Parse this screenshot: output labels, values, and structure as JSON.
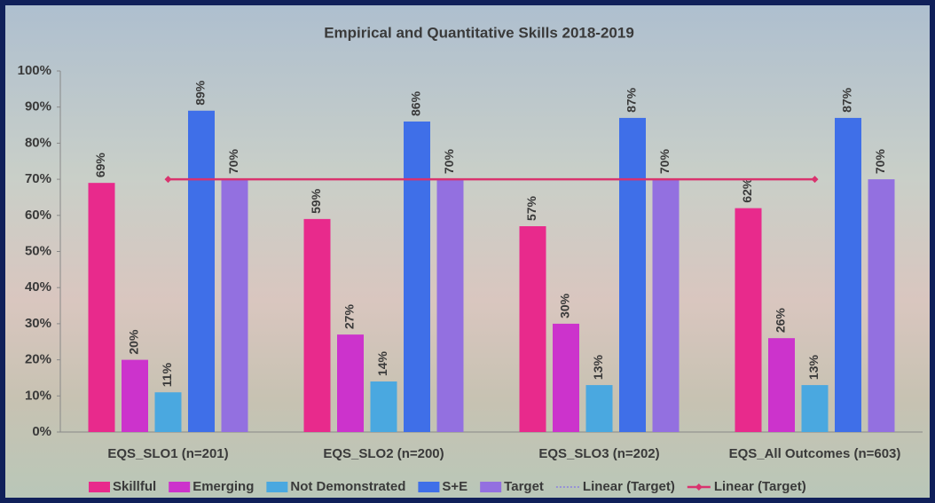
{
  "chart_data": {
    "type": "bar",
    "title": "Empirical and Quantitative Skills 2018-2019",
    "categories": [
      "EQS_SLO1 (n=201)",
      "EQS_SLO2 (n=200)",
      "EQS_SLO3 (n=202)",
      "EQS_All Outcomes (n=603)"
    ],
    "series": [
      {
        "name": "Skillful",
        "color": "#e82a8c",
        "values": [
          69,
          59,
          57,
          62
        ],
        "value_labels": [
          "69%",
          "59%",
          "57%",
          "62%"
        ]
      },
      {
        "name": "Emerging",
        "color": "#cc33cc",
        "values": [
          20,
          27,
          30,
          26
        ],
        "value_labels": [
          "20%",
          "27%",
          "30%",
          "26%"
        ]
      },
      {
        "name": "Not Demonstrated",
        "color": "#4aa8e0",
        "values": [
          11,
          14,
          13,
          13
        ],
        "value_labels": [
          "11%",
          "14%",
          "13%",
          "13%"
        ]
      },
      {
        "name": "S+E",
        "color": "#3f6fe8",
        "values": [
          89,
          86,
          87,
          87
        ],
        "value_labels": [
          "89%",
          "86%",
          "87%",
          "87%"
        ]
      },
      {
        "name": "Target",
        "color": "#9370e0",
        "values": [
          70,
          70,
          70,
          70
        ],
        "value_labels": [
          "70%",
          "70%",
          "70%",
          "70%"
        ]
      }
    ],
    "trendlines": [
      {
        "name": "Linear (Target)",
        "color": "#8a7fe0",
        "style": "dotted"
      },
      {
        "name": "Linear (Target)",
        "color": "#d9336e",
        "style": "solid",
        "values": [
          70,
          70,
          70,
          70
        ]
      }
    ],
    "ylim": [
      0,
      100
    ],
    "yticks": [
      {
        "value": 0,
        "label": "0%"
      },
      {
        "value": 10,
        "label": "10%"
      },
      {
        "value": 20,
        "label": "20%"
      },
      {
        "value": 30,
        "label": "30%"
      },
      {
        "value": 40,
        "label": "40%"
      },
      {
        "value": 50,
        "label": "50%"
      },
      {
        "value": 60,
        "label": "60%"
      },
      {
        "value": 70,
        "label": "70%"
      },
      {
        "value": 80,
        "label": "80%"
      },
      {
        "value": 90,
        "label": "90%"
      },
      {
        "value": 100,
        "label": "100%"
      }
    ],
    "legend": "bottom"
  }
}
